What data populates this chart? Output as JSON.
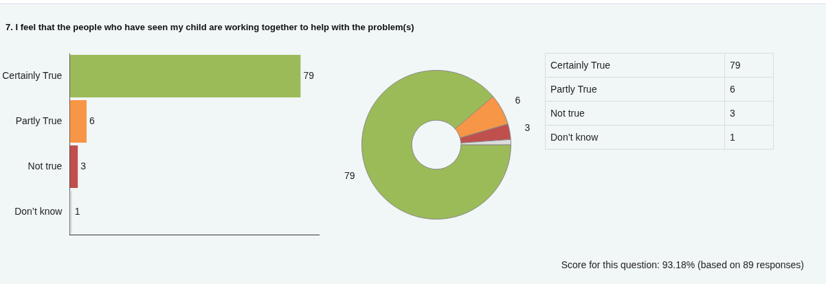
{
  "chart_data": [
    {
      "type": "bar",
      "orientation": "horizontal",
      "title": "7. I feel that the people who have seen my child are working together to help with the problem(s)",
      "categories": [
        "Certainly True",
        "Partly True",
        "Not true",
        "Don’t know"
      ],
      "values": [
        79,
        6,
        3,
        1
      ],
      "colors": [
        "#9bbb59",
        "#f79646",
        "#c0504d",
        "#dcdcdc"
      ],
      "xlim": [
        0,
        85
      ],
      "data_labels": true,
      "legend": false,
      "annotations": [
        "Score for this question: 93.18% (based on 89 responses)"
      ]
    },
    {
      "type": "donut",
      "values": [
        79,
        6,
        3,
        1
      ],
      "colors": [
        "#9bbb59",
        "#f79646",
        "#c0504d",
        "#dcdcdc"
      ],
      "value_labels": [
        "79",
        "6",
        "3",
        null
      ],
      "legend": false
    },
    {
      "type": "other",
      "categories": [
        "Certainly True",
        "Partly True",
        "Not true",
        "Don’t know"
      ],
      "values": [
        79,
        6,
        3,
        1
      ],
      "data_labels": true
    }
  ]
}
